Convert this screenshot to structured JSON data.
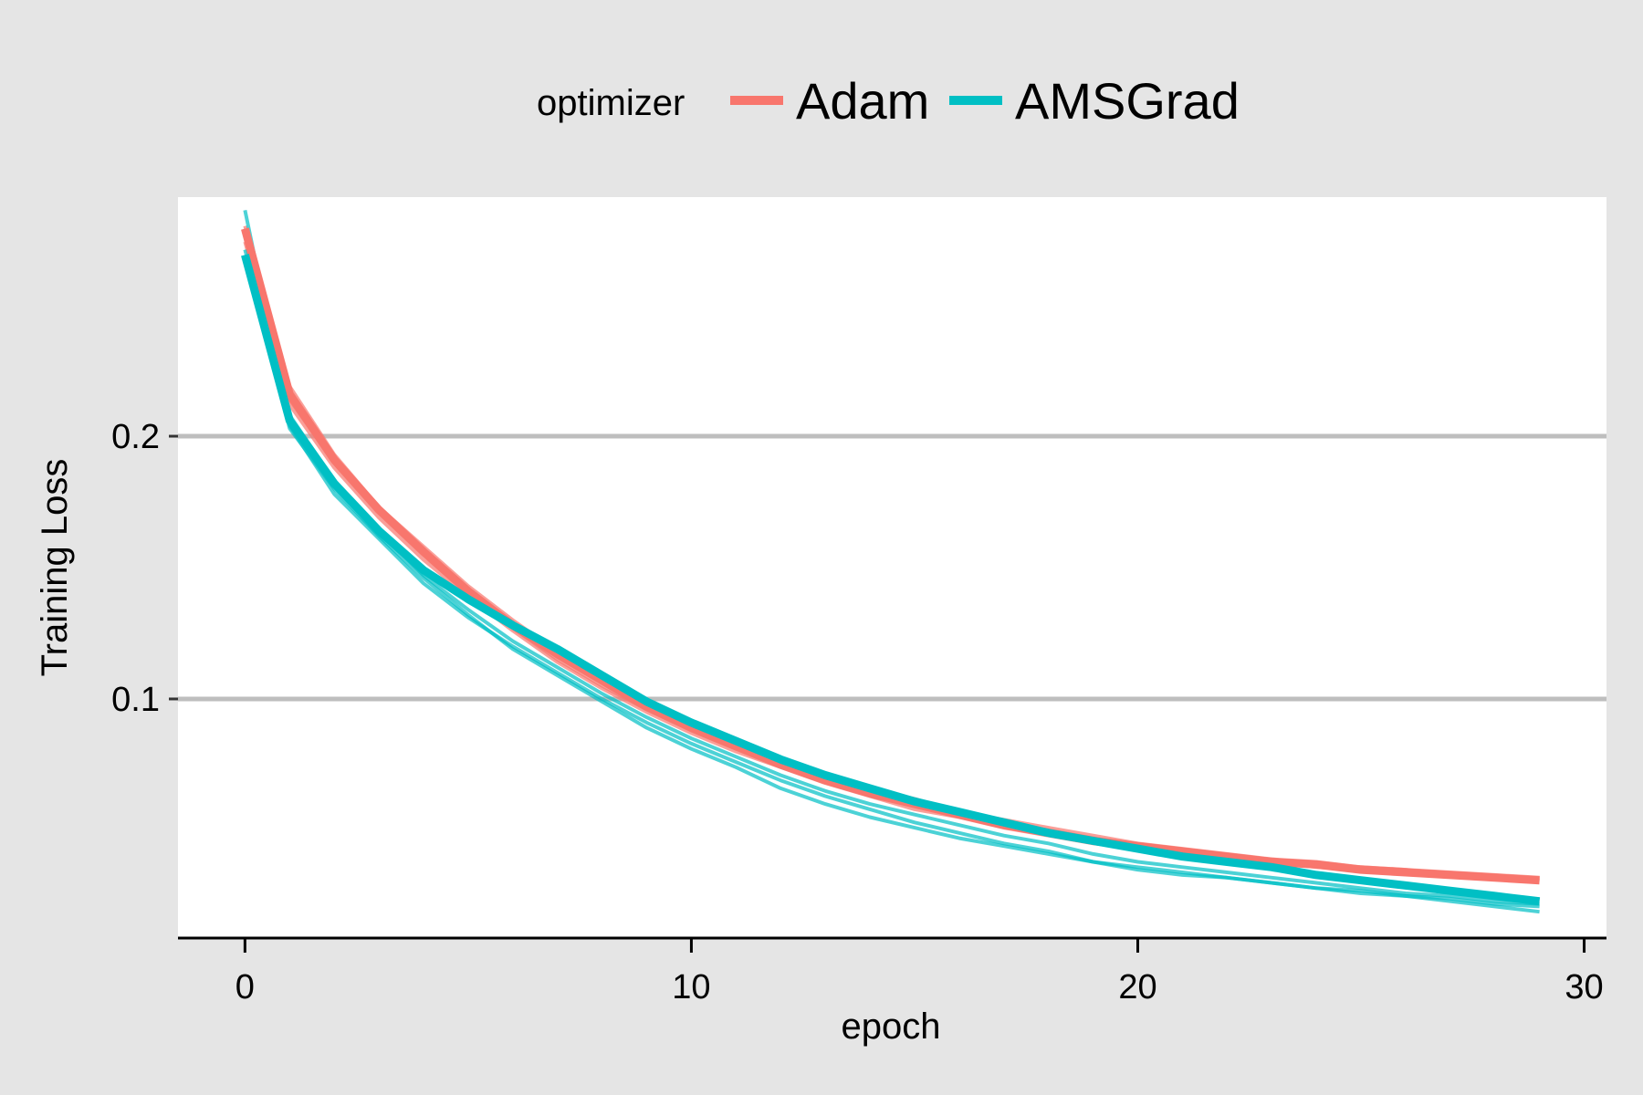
{
  "chart_data": {
    "type": "line",
    "xlabel": "epoch",
    "ylabel": "Training Loss",
    "xlim": [
      -1.5,
      30.5
    ],
    "ylim": [
      0.009,
      0.291
    ],
    "xticks": [
      0,
      10,
      20,
      30
    ],
    "xtick_labels": [
      "0",
      "10",
      "20",
      "30"
    ],
    "yticks": [
      0.1,
      0.2
    ],
    "ytick_labels": [
      "0.1",
      "0.2"
    ],
    "grid": "horizontal major lines",
    "legend": {
      "position": "top",
      "title": "optimizer",
      "entries": [
        {
          "label": "Adam",
          "color": "#F8766D"
        },
        {
          "label": "AMSGrad",
          "color": "#00BFC4"
        }
      ]
    },
    "colors": {
      "Adam": "#F8766D",
      "AMSGrad": "#00BFC4",
      "panel": "#ffffff",
      "background": "#e5e5e5",
      "grid": "#bebebe"
    },
    "x": [
      0,
      1,
      2,
      3,
      4,
      5,
      6,
      7,
      8,
      9,
      10,
      11,
      12,
      13,
      14,
      15,
      16,
      17,
      18,
      19,
      20,
      21,
      22,
      23,
      24,
      25,
      26,
      27,
      28,
      29
    ],
    "series": [
      {
        "name": "Adam",
        "emphasis": "mean",
        "values": [
          0.279,
          0.216,
          0.191,
          0.172,
          0.156,
          0.141,
          0.128,
          0.117,
          0.107,
          0.097,
          0.089,
          0.082,
          0.075,
          0.069,
          0.064,
          0.06,
          0.056,
          0.052,
          0.049,
          0.046,
          0.044,
          0.042,
          0.04,
          0.038,
          0.037,
          0.035,
          0.034,
          0.033,
          0.032,
          0.031
        ]
      },
      {
        "name": "Adam",
        "emphasis": "run",
        "values": [
          0.28,
          0.219,
          0.193,
          0.173,
          0.158,
          0.143,
          0.13,
          0.118,
          0.108,
          0.098,
          0.091,
          0.084,
          0.077,
          0.071,
          0.066,
          0.062,
          0.057,
          0.054,
          0.051,
          0.048,
          0.045,
          0.043,
          0.041,
          0.039,
          0.038,
          0.036,
          0.035,
          0.034,
          0.033,
          0.032
        ]
      },
      {
        "name": "Adam",
        "emphasis": "run",
        "values": [
          0.274,
          0.212,
          0.188,
          0.169,
          0.153,
          0.139,
          0.126,
          0.114,
          0.104,
          0.095,
          0.087,
          0.08,
          0.074,
          0.068,
          0.063,
          0.058,
          0.055,
          0.051,
          0.048,
          0.045,
          0.043,
          0.041,
          0.039,
          0.038,
          0.036,
          0.035,
          0.034,
          0.033,
          0.032,
          0.031
        ]
      },
      {
        "name": "Adam",
        "emphasis": "run",
        "values": [
          0.277,
          0.214,
          0.19,
          0.171,
          0.155,
          0.14,
          0.127,
          0.115,
          0.105,
          0.096,
          0.088,
          0.081,
          0.076,
          0.07,
          0.065,
          0.061,
          0.056,
          0.053,
          0.05,
          0.047,
          0.044,
          0.042,
          0.04,
          0.039,
          0.037,
          0.036,
          0.035,
          0.033,
          0.032,
          0.031
        ]
      },
      {
        "name": "AMSGrad",
        "emphasis": "mean",
        "values": [
          0.269,
          0.206,
          0.182,
          0.164,
          0.149,
          0.138,
          0.128,
          0.119,
          0.109,
          0.099,
          0.091,
          0.084,
          0.077,
          0.071,
          0.066,
          0.061,
          0.057,
          0.053,
          0.049,
          0.046,
          0.043,
          0.04,
          0.038,
          0.036,
          0.033,
          0.031,
          0.029,
          0.027,
          0.025,
          0.023
        ]
      },
      {
        "name": "AMSGrad",
        "emphasis": "run",
        "values": [
          0.286,
          0.204,
          0.178,
          0.161,
          0.144,
          0.131,
          0.12,
          0.11,
          0.1,
          0.091,
          0.083,
          0.076,
          0.069,
          0.063,
          0.058,
          0.053,
          0.049,
          0.045,
          0.042,
          0.038,
          0.035,
          0.033,
          0.032,
          0.03,
          0.028,
          0.026,
          0.025,
          0.023,
          0.021,
          0.019
        ]
      },
      {
        "name": "AMSGrad",
        "emphasis": "run",
        "values": [
          0.268,
          0.203,
          0.18,
          0.162,
          0.146,
          0.132,
          0.119,
          0.109,
          0.099,
          0.089,
          0.081,
          0.074,
          0.066,
          0.06,
          0.055,
          0.051,
          0.047,
          0.044,
          0.041,
          0.038,
          0.036,
          0.034,
          0.032,
          0.03,
          0.028,
          0.027,
          0.025,
          0.024,
          0.022,
          0.021
        ]
      },
      {
        "name": "AMSGrad",
        "emphasis": "run",
        "values": [
          0.271,
          0.208,
          0.183,
          0.164,
          0.147,
          0.134,
          0.122,
          0.112,
          0.102,
          0.093,
          0.085,
          0.078,
          0.071,
          0.065,
          0.06,
          0.056,
          0.052,
          0.048,
          0.045,
          0.041,
          0.038,
          0.036,
          0.034,
          0.032,
          0.03,
          0.028,
          0.026,
          0.025,
          0.023,
          0.022
        ]
      }
    ]
  }
}
